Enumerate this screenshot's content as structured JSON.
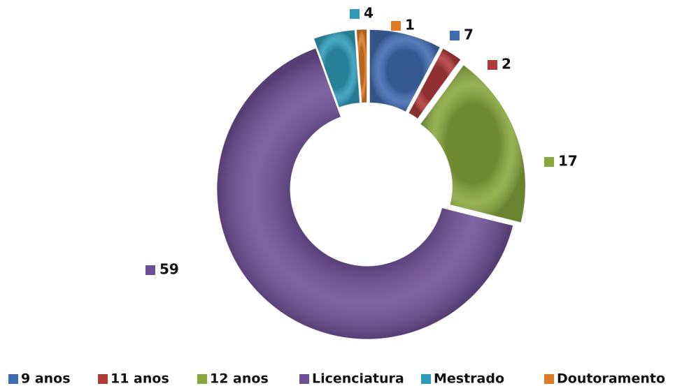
{
  "chart_data": {
    "type": "donut",
    "categories": [
      "9 anos",
      "11 anos",
      "12 anos",
      "Licenciatura",
      "Mestrado",
      "Doutoramento"
    ],
    "values": [
      7,
      2,
      17,
      59,
      4,
      1
    ],
    "colors": [
      "#3f6bb0",
      "#b03a3a",
      "#86a83c",
      "#6e4f96",
      "#2e9cb8",
      "#e07b25"
    ],
    "legend": "bottom"
  }
}
